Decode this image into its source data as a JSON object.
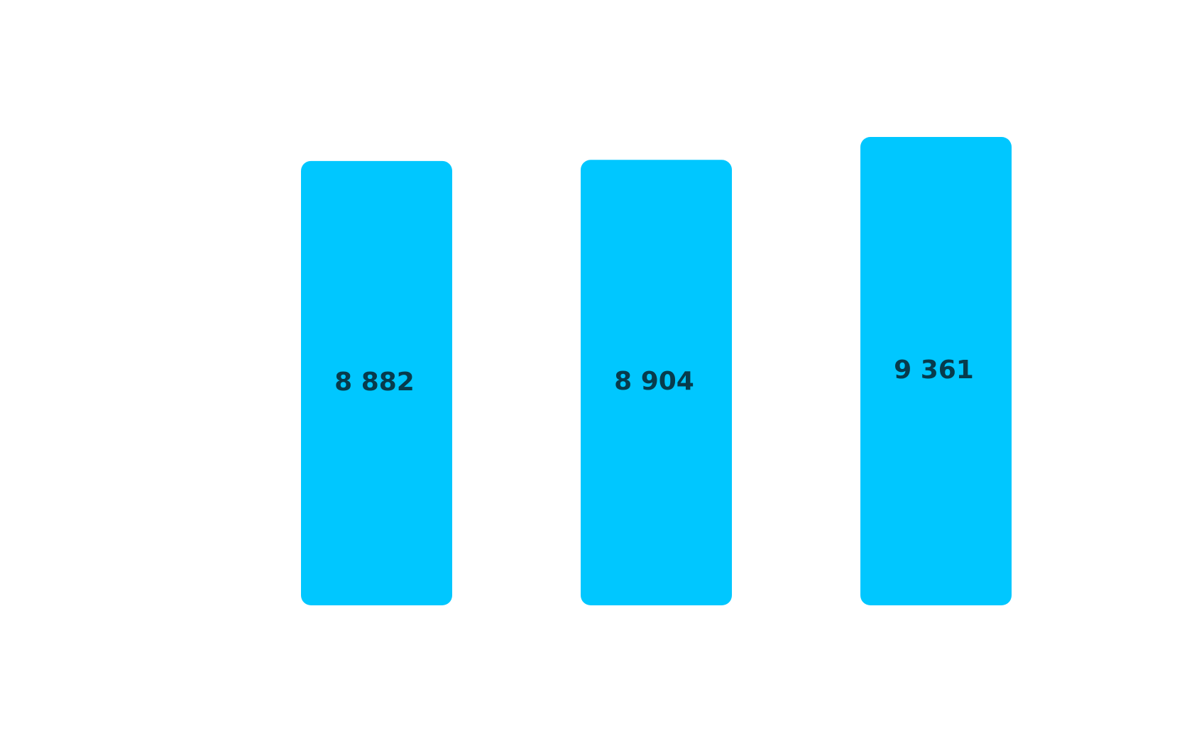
{
  "chart_data": {
    "type": "bar",
    "categories": [
      "",
      "",
      ""
    ],
    "values": [
      8882,
      8904,
      9361
    ],
    "value_labels": [
      "8 882",
      "8 904",
      "9 361"
    ],
    "title": "",
    "xlabel": "",
    "ylabel": "",
    "ylim": [
      0,
      10500
    ],
    "grid": false,
    "legend": "none",
    "colors": {
      "bar": "#00c7ff",
      "label": "#073b4c",
      "background": "#ffffff"
    }
  }
}
